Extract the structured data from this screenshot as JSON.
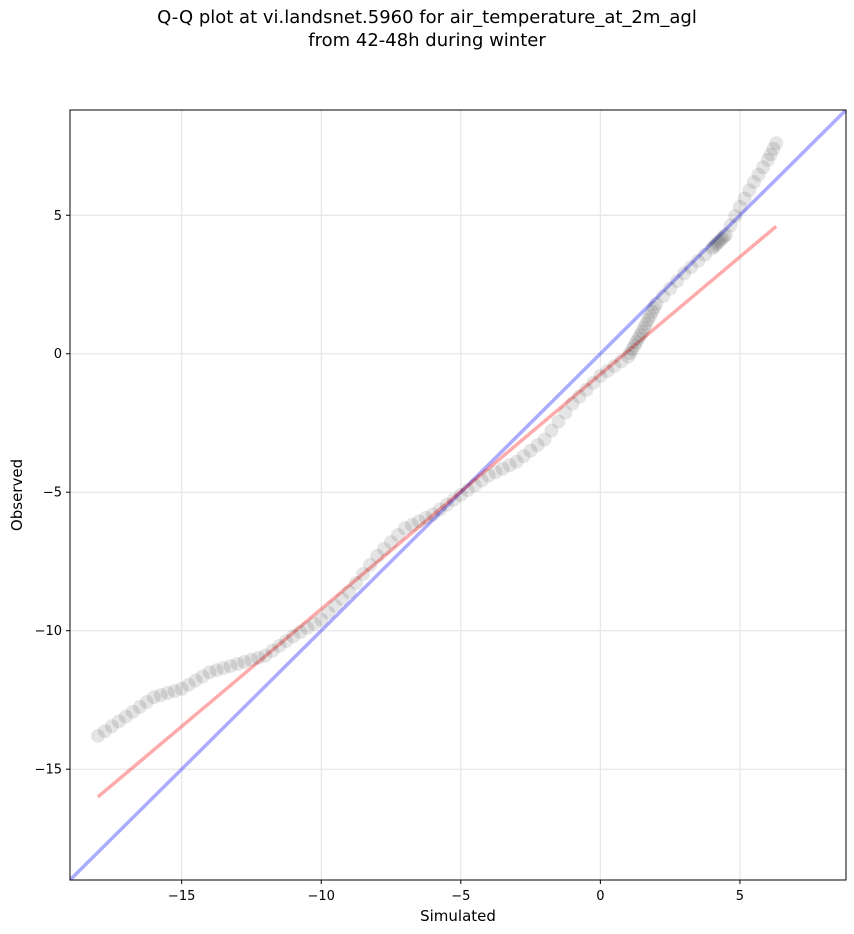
{
  "chart_data": {
    "type": "scatter",
    "title_lines": [
      "Q-Q plot at vi.landsnet.5960 for air_temperature_at_2m_agl",
      "from 42-48h during winter"
    ],
    "xlabel": "Simulated",
    "ylabel": "Observed",
    "xlim": [
      -19.0,
      8.8
    ],
    "ylim": [
      -19.0,
      8.8
    ],
    "x_ticks": [
      -15,
      -10,
      -5,
      0,
      5
    ],
    "y_ticks": [
      -15,
      -10,
      -5,
      0,
      5
    ],
    "tick_labels_x": [
      "−15",
      "−10",
      "−5",
      "0",
      "5"
    ],
    "tick_labels_y": [
      "−15",
      "−10",
      "−5",
      "0",
      "5"
    ],
    "grid": true,
    "colors": {
      "points": "#000000",
      "identity_line": "#0000ff",
      "fit_line": "#ff0000",
      "grid": "#e6e6e6"
    },
    "identity_line": {
      "slope": 1,
      "intercept": 0
    },
    "fit_line": {
      "x": [
        -18.0,
        6.3
      ],
      "y": [
        -16.0,
        4.6
      ]
    },
    "quantile_curve": [
      [
        -18.0,
        -13.8
      ],
      [
        -17.0,
        -13.1
      ],
      [
        -16.0,
        -12.4
      ],
      [
        -15.0,
        -12.1
      ],
      [
        -14.0,
        -11.5
      ],
      [
        -13.0,
        -11.2
      ],
      [
        -12.0,
        -10.9
      ],
      [
        -11.0,
        -10.2
      ],
      [
        -10.0,
        -9.6
      ],
      [
        -9.0,
        -8.6
      ],
      [
        -8.0,
        -7.3
      ],
      [
        -7.0,
        -6.3
      ],
      [
        -6.0,
        -5.8
      ],
      [
        -5.0,
        -5.1
      ],
      [
        -4.0,
        -4.4
      ],
      [
        -3.0,
        -3.9
      ],
      [
        -2.0,
        -3.1
      ],
      [
        -1.0,
        -1.8
      ],
      [
        0.0,
        -0.8
      ],
      [
        1.0,
        -0.1
      ],
      [
        1.5,
        0.8
      ],
      [
        2.0,
        1.8
      ],
      [
        3.0,
        2.9
      ],
      [
        4.0,
        3.8
      ],
      [
        4.5,
        4.3
      ],
      [
        5.0,
        5.3
      ],
      [
        5.5,
        6.2
      ],
      [
        6.0,
        7.0
      ],
      [
        6.3,
        7.6
      ]
    ]
  }
}
